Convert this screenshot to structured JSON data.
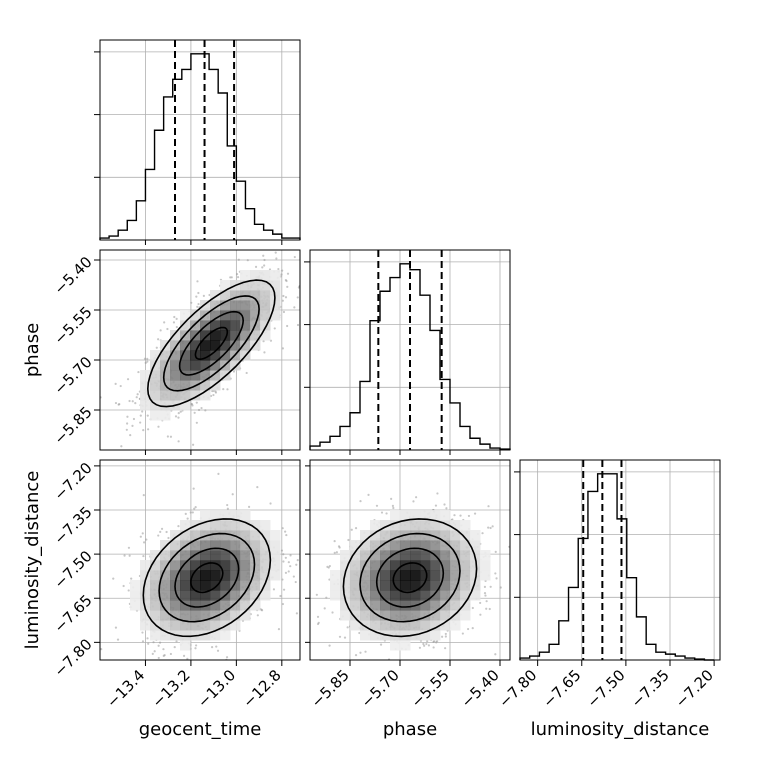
{
  "chart_data": {
    "type": "corner",
    "parameters": [
      "geocent_time",
      "phase",
      "luminosity_distance"
    ],
    "axis_labels": {
      "geocent_time": "geocent_time",
      "phase": "phase",
      "luminosity_distance": "luminosity_distance"
    },
    "ranges": {
      "geocent_time": [
        -13.6,
        -12.72
      ],
      "phase": [
        -5.97,
        -5.37
      ],
      "luminosity_distance": [
        -7.86,
        -7.18
      ]
    },
    "ticks": {
      "geocent_time": {
        "values": [
          -13.4,
          -13.2,
          -13.0,
          -12.8
        ],
        "labels": [
          "−13.4",
          "−13.2",
          "−13.0",
          "−12.8"
        ]
      },
      "phase": {
        "values": [
          -5.85,
          -5.7,
          -5.55,
          -5.4
        ],
        "labels": [
          "−5.85",
          "−5.70",
          "−5.55",
          "−5.40"
        ]
      },
      "luminosity_distance": {
        "values": [
          -7.8,
          -7.65,
          -7.5,
          -7.35,
          -7.2
        ],
        "labels": [
          "−7.80",
          "−7.65",
          "−7.50",
          "−7.35",
          "−7.20"
        ]
      }
    },
    "quantiles": {
      "geocent_time": [
        -13.27,
        -13.14,
        -13.01
      ],
      "phase": [
        -5.765,
        -5.67,
        -5.575
      ],
      "luminosity_distance": [
        -7.645,
        -7.58,
        -7.515
      ]
    },
    "histograms": {
      "geocent_time": {
        "edges": [
          -13.6,
          -13.56,
          -13.52,
          -13.48,
          -13.44,
          -13.4,
          -13.36,
          -13.32,
          -13.28,
          -13.24,
          -13.2,
          -13.16,
          -13.12,
          -13.08,
          -13.04,
          -13.0,
          -12.96,
          -12.92,
          -12.88,
          -12.84,
          -12.8,
          -12.76,
          -12.72
        ],
        "counts": [
          0.01,
          0.02,
          0.05,
          0.1,
          0.2,
          0.36,
          0.56,
          0.73,
          0.82,
          0.87,
          0.95,
          0.95,
          0.87,
          0.75,
          0.48,
          0.3,
          0.16,
          0.08,
          0.05,
          0.03,
          0.01,
          0.01
        ]
      },
      "phase": {
        "edges": [
          -5.97,
          -5.94,
          -5.91,
          -5.88,
          -5.85,
          -5.82,
          -5.79,
          -5.76,
          -5.73,
          -5.7,
          -5.67,
          -5.64,
          -5.61,
          -5.58,
          -5.55,
          -5.52,
          -5.49,
          -5.46,
          -5.43,
          -5.4,
          -5.37
        ],
        "counts": [
          0.02,
          0.04,
          0.07,
          0.12,
          0.19,
          0.35,
          0.66,
          0.81,
          0.88,
          0.95,
          0.92,
          0.79,
          0.61,
          0.36,
          0.24,
          0.12,
          0.06,
          0.03,
          0.01,
          0.005
        ]
      },
      "luminosity_distance": {
        "edges": [
          -7.86,
          -7.827,
          -7.794,
          -7.761,
          -7.728,
          -7.695,
          -7.662,
          -7.629,
          -7.596,
          -7.563,
          -7.53,
          -7.497,
          -7.464,
          -7.431,
          -7.398,
          -7.365,
          -7.332,
          -7.299,
          -7.266,
          -7.233,
          -7.2
        ],
        "counts": [
          0.01,
          0.02,
          0.04,
          0.08,
          0.2,
          0.37,
          0.62,
          0.86,
          0.95,
          0.95,
          0.72,
          0.42,
          0.22,
          0.08,
          0.04,
          0.03,
          0.02,
          0.01,
          0.005,
          0.0
        ]
      }
    },
    "joint": [
      {
        "x": "geocent_time",
        "y": "phase",
        "mean": [
          -13.11,
          -5.65
        ],
        "sd": [
          0.14,
          0.095
        ],
        "corr": 0.72,
        "scatter_points": 1500
      },
      {
        "x": "geocent_time",
        "y": "luminosity_distance",
        "mean": [
          -13.13,
          -7.58
        ],
        "sd": [
          0.14,
          0.1
        ],
        "corr": 0.3,
        "scatter_points": 1400
      },
      {
        "x": "phase",
        "y": "luminosity_distance",
        "mean": [
          -5.67,
          -7.58
        ],
        "sd": [
          0.1,
          0.1
        ],
        "corr": 0.15,
        "scatter_points": 1400
      }
    ],
    "contour_levels": [
      0.118,
      0.393,
      0.675,
      0.864
    ],
    "grid": true
  }
}
